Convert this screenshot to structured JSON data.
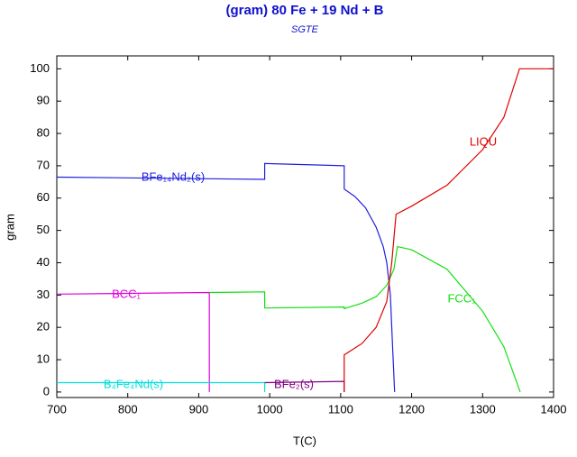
{
  "chart_data": {
    "type": "line",
    "title": "(gram) 80 Fe +  19 Nd +  B",
    "subtitle": "SGTE",
    "x_label": "T(C)",
    "y_label": "gram",
    "xlim": [
      700,
      1400
    ],
    "ylim": [
      -1.7,
      104
    ],
    "xticks": [
      700,
      800,
      900,
      1000,
      1100,
      1200,
      1300,
      1400
    ],
    "yticks": [
      0,
      10,
      20,
      30,
      40,
      50,
      60,
      70,
      80,
      90,
      100
    ],
    "grid": false,
    "series": [
      {
        "name": "BFe₁₄Nd₂(s)",
        "color": "#2020e0",
        "x": [
          700,
          993,
          993,
          1105,
          1105,
          1120,
          1135,
          1150,
          1160,
          1165,
          1170,
          1173,
          1176
        ],
        "values": [
          66.5,
          65.8,
          70.7,
          70,
          62.8,
          60.5,
          57,
          51,
          45,
          40,
          30,
          15,
          0
        ]
      },
      {
        "name": "BCC₁",
        "color": "#e000e0",
        "x": [
          700,
          915,
          915
        ],
        "values": [
          30.3,
          30.8,
          0
        ]
      },
      {
        "name": "FCC₁",
        "color": "#10e010",
        "x": [
          915,
          993,
          993,
          1105,
          1105,
          1130,
          1150,
          1165,
          1175,
          1180,
          1200,
          1250,
          1300,
          1330,
          1353
        ],
        "values": [
          30.8,
          31,
          26,
          26.3,
          25.8,
          27.5,
          29.5,
          33,
          38,
          45,
          44,
          38,
          25,
          14,
          0
        ]
      },
      {
        "name": "B₄Fe₄Nd(s)",
        "color": "#00e0e0",
        "x": [
          700,
          993,
          993
        ],
        "values": [
          2.9,
          2.9,
          0
        ]
      },
      {
        "name": "BFe₂(s)",
        "color": "#800080",
        "x": [
          993,
          1105,
          1105
        ],
        "values": [
          2.9,
          3.3,
          0
        ]
      },
      {
        "name": "LIQU",
        "color": "#e00000",
        "x": [
          1105,
          1105,
          1130,
          1150,
          1165,
          1172,
          1178,
          1200,
          1250,
          1300,
          1330,
          1352,
          1400
        ],
        "values": [
          0,
          11.5,
          15,
          20,
          28,
          40,
          55,
          57.5,
          64,
          75,
          85,
          100,
          100
        ]
      }
    ]
  }
}
